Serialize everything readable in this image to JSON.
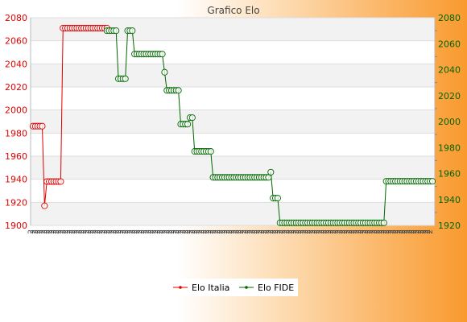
{
  "chart_data": {
    "type": "line",
    "title": "Grafico Elo",
    "legend_position": "bottom",
    "colors": {
      "italia": "#dd0000",
      "fide": "#006600",
      "plot_band": "#f2f2f2",
      "plot_bg": "#ffffff"
    },
    "y_left": {
      "min": 1900,
      "max": 2080,
      "step": 20,
      "ticks": [
        1900,
        1920,
        1940,
        1960,
        1980,
        2000,
        2020,
        2040,
        2060,
        2080
      ],
      "color": "#dd0000"
    },
    "y_right": {
      "min": 1920,
      "max": 2080,
      "step": 20,
      "ticks": [
        1920,
        1940,
        1960,
        1980,
        2000,
        2020,
        2040,
        2060,
        2080
      ],
      "color": "#006600"
    },
    "x_tick_label": "2",
    "series": [
      {
        "name": "Elo Italia",
        "axis": "left",
        "values": [
          1986,
          1986,
          1986,
          1986,
          1986,
          1917,
          1938,
          1938,
          1938,
          1938,
          1938,
          1938,
          1938,
          2071,
          2071,
          2071,
          2071,
          2071,
          2071,
          2071,
          2071,
          2071,
          2071,
          2071,
          2071,
          2071,
          2071,
          2071,
          2071,
          2071,
          2071,
          2071,
          2071
        ]
      },
      {
        "name": "Elo FIDE",
        "axis": "right",
        "start_index": 32,
        "values": [
          2070,
          2070,
          2070,
          2070,
          2070,
          2033,
          2033,
          2033,
          2033,
          2070,
          2070,
          2070,
          2052,
          2052,
          2052,
          2052,
          2052,
          2052,
          2052,
          2052,
          2052,
          2052,
          2052,
          2052,
          2052,
          2038,
          2024,
          2024,
          2024,
          2024,
          2024,
          2024,
          1998,
          1998,
          1998,
          1998,
          2003,
          2003,
          1977,
          1977,
          1977,
          1977,
          1977,
          1977,
          1977,
          1977,
          1957,
          1957,
          1957,
          1957,
          1957,
          1957,
          1957,
          1957,
          1957,
          1957,
          1957,
          1957,
          1957,
          1957,
          1957,
          1957,
          1957,
          1957,
          1957,
          1957,
          1957,
          1957,
          1957,
          1957,
          1957,
          1961,
          1941,
          1941,
          1941,
          1922,
          1922,
          1922,
          1922,
          1922,
          1922,
          1922,
          1922,
          1922,
          1922,
          1922,
          1922,
          1922,
          1922,
          1922,
          1922,
          1922,
          1922,
          1922,
          1922,
          1922,
          1922,
          1922,
          1922,
          1922,
          1922,
          1922,
          1922,
          1922,
          1922,
          1922,
          1922,
          1922,
          1922,
          1922,
          1922,
          1922,
          1922,
          1922,
          1922,
          1922,
          1922,
          1922,
          1922,
          1922,
          1922,
          1954,
          1954,
          1954,
          1954,
          1954,
          1954,
          1954,
          1954,
          1954,
          1954,
          1954,
          1954,
          1954,
          1954,
          1954,
          1954,
          1954,
          1954,
          1954,
          1954,
          1954
        ]
      }
    ]
  }
}
